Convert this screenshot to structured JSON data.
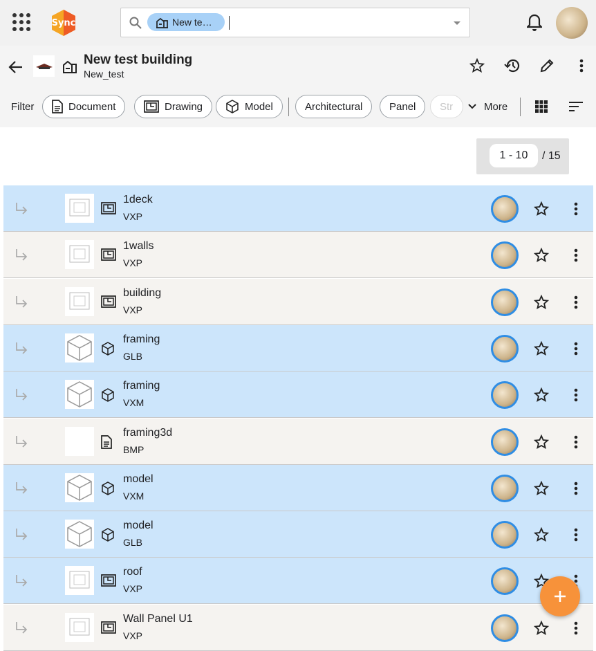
{
  "app": {
    "logo": "Sync",
    "search_chip": "New te…"
  },
  "header": {
    "title": "New test building",
    "subtitle": "New_test"
  },
  "filters": {
    "label": "Filter",
    "chips": [
      "Document",
      "Drawing",
      "Model",
      "Architectural",
      "Panel",
      "Str"
    ],
    "more": "More"
  },
  "pagination": {
    "range": "1 - 10",
    "total": "/ 15"
  },
  "rows": [
    {
      "name": "1deck",
      "type": "VXP",
      "kind": "drawing",
      "highlighted": true
    },
    {
      "name": "1walls",
      "type": "VXP",
      "kind": "drawing",
      "highlighted": false
    },
    {
      "name": "building",
      "type": "VXP",
      "kind": "drawing",
      "highlighted": false
    },
    {
      "name": "framing",
      "type": "GLB",
      "kind": "model",
      "highlighted": true
    },
    {
      "name": "framing",
      "type": "VXM",
      "kind": "model",
      "highlighted": true
    },
    {
      "name": "framing3d",
      "type": "BMP",
      "kind": "document",
      "highlighted": false
    },
    {
      "name": "model",
      "type": "VXM",
      "kind": "model",
      "highlighted": true
    },
    {
      "name": "model",
      "type": "GLB",
      "kind": "model",
      "highlighted": true
    },
    {
      "name": "roof",
      "type": "VXP",
      "kind": "drawing",
      "highlighted": true
    },
    {
      "name": "Wall Panel U1",
      "type": "VXP",
      "kind": "drawing",
      "highlighted": false
    }
  ]
}
